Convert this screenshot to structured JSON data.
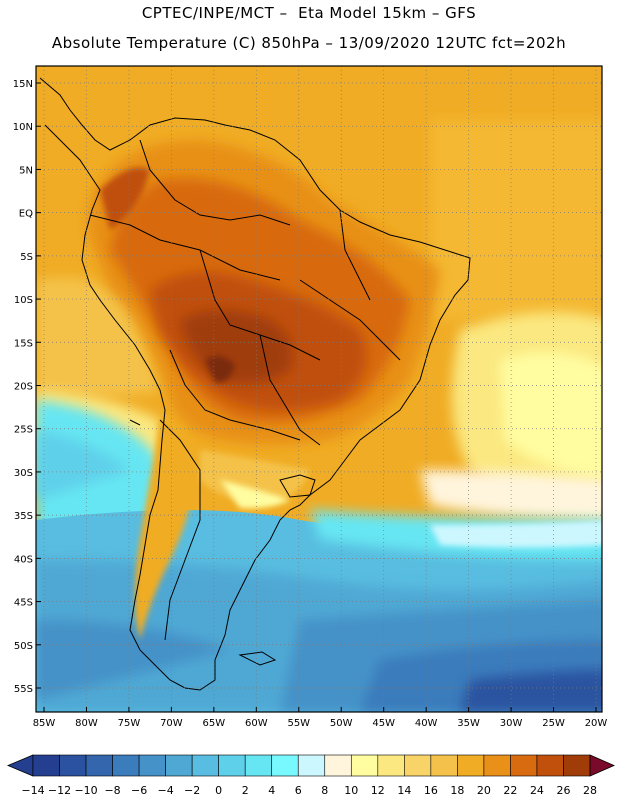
{
  "header": {
    "line1": "CPTEC/INPE/MCT –  Eta Model 15km – GFS",
    "line2": "Absolute Temperature (C) 850hPa – 13/09/2020 12UTC fct=202h"
  },
  "map": {
    "lat_labels": [
      "15N",
      "10N",
      "5N",
      "EQ",
      "5S",
      "10S",
      "15S",
      "20S",
      "25S",
      "30S",
      "35S",
      "40S",
      "45S",
      "50S",
      "55S"
    ],
    "lon_labels": [
      "85W",
      "80W",
      "75W",
      "70W",
      "65W",
      "60W",
      "55W",
      "50W",
      "45W",
      "40W",
      "35W",
      "30W",
      "25W",
      "20W"
    ]
  },
  "colorbar": {
    "labels": [
      "-14",
      "-12",
      "-10",
      "-8",
      "-6",
      "-4",
      "-2",
      "0",
      "2",
      "4",
      "6",
      "8",
      "10",
      "12",
      "14",
      "16",
      "18",
      "20",
      "22",
      "24",
      "26",
      "28"
    ],
    "colors": [
      "#243f8f",
      "#2b52a0",
      "#3366ad",
      "#3b7cbc",
      "#4492c8",
      "#4fa8d4",
      "#58bde0",
      "#5fd0ea",
      "#66e6f2",
      "#78f8ff",
      "#cdf7ff",
      "#fff5dd",
      "#fffda0",
      "#fbe880",
      "#f8d468",
      "#f4c24a",
      "#f0ac24",
      "#e89018",
      "#d86a10",
      "#c0500c",
      "#a03c08",
      "#7a2a08"
    ]
  }
}
